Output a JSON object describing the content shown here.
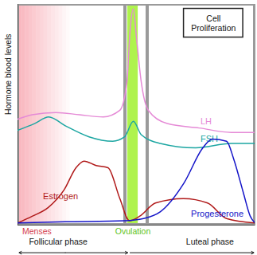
{
  "chart_data": {
    "type": "line",
    "y_label": "Hormone blood levels",
    "annotations": [
      "Cell Proliferation",
      "Menses",
      "Ovulation",
      "Follicular phase",
      "Luteal phase"
    ],
    "xlim": [
      0,
      100
    ],
    "ylim": [
      0,
      100
    ],
    "xticks": [],
    "yticks": [],
    "tick_labels": false,
    "grid": false,
    "series": [
      {
        "name": "LH",
        "color": "#e58ad6",
        "x": [
          0,
          6,
          16,
          26,
          36,
          43,
          46,
          47.3,
          48.7,
          50,
          52,
          55,
          63,
          76.5,
          90,
          100
        ],
        "values": [
          48,
          50,
          51,
          50,
          49,
          52,
          65,
          88,
          98,
          85,
          65,
          52,
          46,
          44,
          42,
          42
        ]
      },
      {
        "name": "FSH",
        "color": "#1ca6a2",
        "x": [
          0,
          7,
          13,
          20,
          30,
          40,
          45,
          48.7,
          52,
          60,
          75,
          90,
          100
        ],
        "values": [
          43,
          46,
          49,
          45,
          40,
          38,
          40,
          47,
          41,
          37,
          35,
          37,
          37
        ]
      },
      {
        "name": "Estrogen",
        "color": "#b01818",
        "x": [
          0,
          6,
          12.8,
          19.5,
          24.5,
          27.9,
          33,
          38,
          43,
          47,
          51.3,
          58,
          69.8,
          80,
          88,
          100
        ],
        "values": [
          1,
          4,
          8,
          16,
          26,
          29,
          27,
          26,
          12,
          2,
          4,
          10,
          12,
          10,
          3,
          1
        ]
      },
      {
        "name": "Progesterone",
        "color": "#1414c8",
        "x": [
          0,
          20,
          45,
          53,
          60,
          70,
          78,
          82,
          88,
          91,
          95,
          98,
          100
        ],
        "values": [
          1,
          1.5,
          2,
          3,
          6,
          19,
          35,
          39,
          38,
          30,
          15,
          4,
          1
        ]
      }
    ]
  }
}
